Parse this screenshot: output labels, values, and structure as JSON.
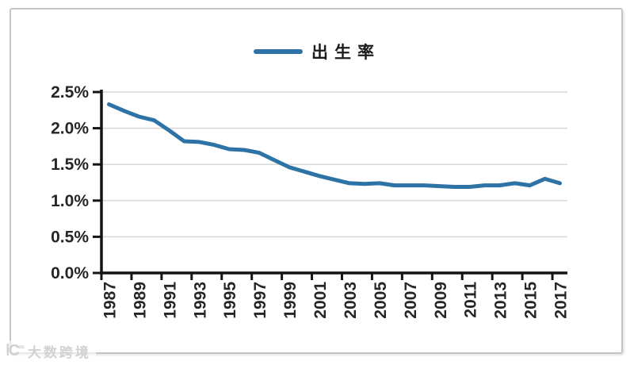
{
  "window": {
    "background": "#ffffff",
    "frame_border_color": "#c5c5c5"
  },
  "legend": {
    "label": "出生率",
    "position": "top-center"
  },
  "watermark": {
    "logo": "Ϲ∞",
    "text": "大数跨境"
  },
  "colors": {
    "line": "#2E73A5",
    "grid": "#d8d8d8",
    "axis": "#141414",
    "tick_label": "#262626"
  },
  "chart_data": {
    "type": "line",
    "title": "",
    "xlabel": "",
    "ylabel": "",
    "unit": "%",
    "grid": "horizontal",
    "legend_position": "top-center",
    "ylim": [
      0,
      2.5
    ],
    "yticks": {
      "values": [
        0,
        0.5,
        1.0,
        1.5,
        2.0,
        2.5
      ],
      "labels": [
        "0.0%",
        "0.5%",
        "1.0%",
        "1.5%",
        "2.0%",
        "2.5%"
      ]
    },
    "x_label_every": 2,
    "categories": [
      "1987",
      "1988",
      "1989",
      "1990",
      "1991",
      "1992",
      "1993",
      "1994",
      "1995",
      "1996",
      "1997",
      "1998",
      "1999",
      "2000",
      "2001",
      "2002",
      "2003",
      "2004",
      "2005",
      "2006",
      "2007",
      "2008",
      "2009",
      "2010",
      "2011",
      "2012",
      "2013",
      "2014",
      "2015",
      "2016",
      "2017"
    ],
    "x_tick_labels": [
      "1987",
      "1989",
      "1991",
      "1993",
      "1995",
      "1997",
      "1999",
      "2001",
      "2003",
      "2005",
      "2007",
      "2009",
      "2011",
      "2013",
      "2015",
      "2017"
    ],
    "series": [
      {
        "name": "出生率",
        "color": "#2E73A5",
        "values": [
          2.33,
          2.24,
          2.16,
          2.11,
          1.97,
          1.82,
          1.81,
          1.77,
          1.71,
          1.7,
          1.66,
          1.56,
          1.46,
          1.4,
          1.34,
          1.29,
          1.24,
          1.23,
          1.24,
          1.21,
          1.21,
          1.21,
          1.2,
          1.19,
          1.19,
          1.21,
          1.21,
          1.24,
          1.21,
          1.3,
          1.24
        ]
      }
    ]
  }
}
